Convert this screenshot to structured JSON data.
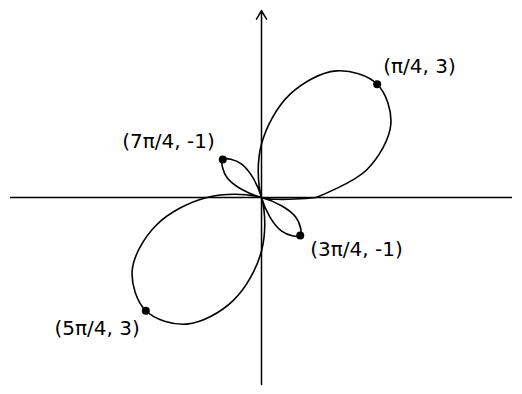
{
  "chart_data": {
    "type": "line",
    "x": [
      1,
      1.93,
      2.37,
      2.12,
      1.37,
      0.52,
      0,
      0,
      0.37,
      0.71,
      0.63,
      0,
      -1,
      -1.93,
      -2.37,
      -2.12,
      -1.37,
      -0.52,
      0,
      0,
      -0.37,
      -0.71,
      -0.63,
      0,
      1
    ],
    "values": [
      0,
      0.52,
      1.37,
      2.12,
      2.37,
      1.93,
      1,
      0,
      -0.63,
      -0.71,
      -0.37,
      0,
      0,
      -0.52,
      -1.37,
      -2.12,
      -2.37,
      -1.93,
      -1,
      0,
      0.63,
      0.71,
      0.37,
      0,
      0
    ],
    "color": "#000000",
    "xlim": [
      -4.6,
      4.6
    ],
    "ylim": [
      -3.5,
      3.5
    ],
    "tick_labels": false,
    "annotations": [
      {
        "text": "(π/4, 3)",
        "x": 2.12,
        "y": 2.12
      },
      {
        "text": "(5π/4, 3)",
        "x": -2.12,
        "y": -2.12
      },
      {
        "text": "(7π/4, -1)",
        "x": -0.71,
        "y": 0.71
      },
      {
        "text": "(3π/4, -1)",
        "x": 0.71,
        "y": -0.71
      }
    ]
  }
}
